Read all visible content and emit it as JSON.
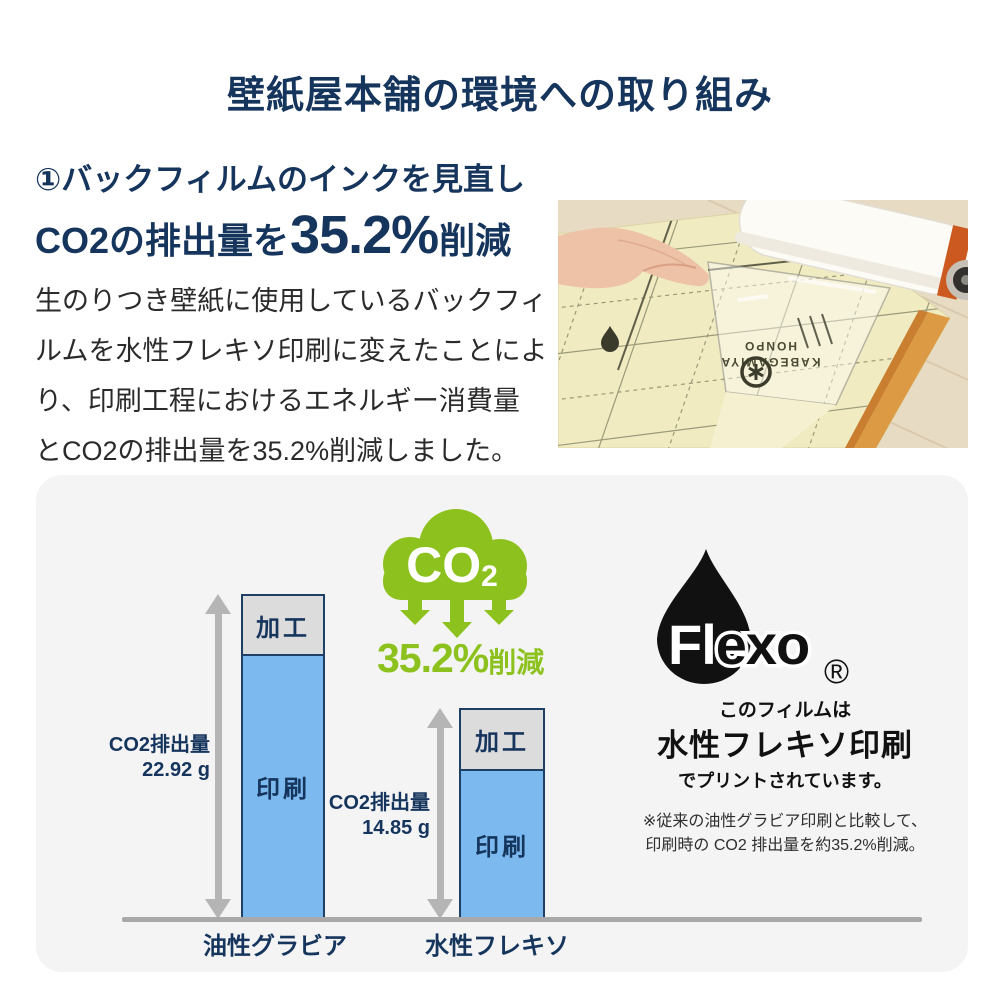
{
  "page_title": "壁紙屋本舗の環境への取り組み",
  "intro": {
    "section_heading": "①バックフィルムのインクを見直し",
    "co2_statement": {
      "prefix": "CO2の排出量を",
      "highlight": "35.2%",
      "suffix": "削減"
    },
    "body_lines": [
      "生のりつき壁紙に使用しているバックフィ",
      "ルムを水性フレキソ印刷に変えたことによ",
      "り、印刷工程におけるエネルギー消費量",
      "とCO2の排出量を35.2%削減しました。"
    ]
  },
  "photo": {
    "film_text_line1": "KABEGAMIYA",
    "film_text_line2": "HONPO"
  },
  "chart_data": {
    "type": "bar",
    "stacked": true,
    "unit": "g",
    "categories": [
      "油性グラビア",
      "水性フレキソ"
    ],
    "series": [
      {
        "name": "加工",
        "values": [
          4.23,
          4.28
        ]
      },
      {
        "name": "印刷",
        "values": [
          18.69,
          10.57
        ]
      }
    ],
    "totals_g": [
      22.92,
      14.85
    ],
    "total_labels": [
      [
        "CO2排出量",
        "22.92 g"
      ],
      [
        "CO2排出量",
        "14.85 g"
      ]
    ],
    "segment_labels": [
      "加工",
      "印刷"
    ],
    "ylim": [
      0,
      24
    ],
    "grid": false,
    "cloud": {
      "text": "CO",
      "subscript": "2"
    },
    "reduction_label": {
      "percent": "35.2%",
      "suffix": "削減"
    },
    "colors": {
      "printing_blue": "#7cb9ef",
      "processing_gray": "#dcdcdd",
      "bar_border_navy": "#1d4064",
      "arrow_gray": "#b5b5b5",
      "axis_gray": "#a9a9a9",
      "accent_green": "#8dc21e",
      "text_navy": "#16355d"
    }
  },
  "flexo": {
    "logo_white": "Fl",
    "logo_black": "exo",
    "registered": "®",
    "line1": "このフィルムは",
    "line2": "水性フレキソ印刷",
    "line3": "でプリントされています。",
    "note_line1": "※従来の油性グラビア印刷と比較して、",
    "note_line2": "印刷時の CO2 排出量を約35.2%削減。"
  }
}
